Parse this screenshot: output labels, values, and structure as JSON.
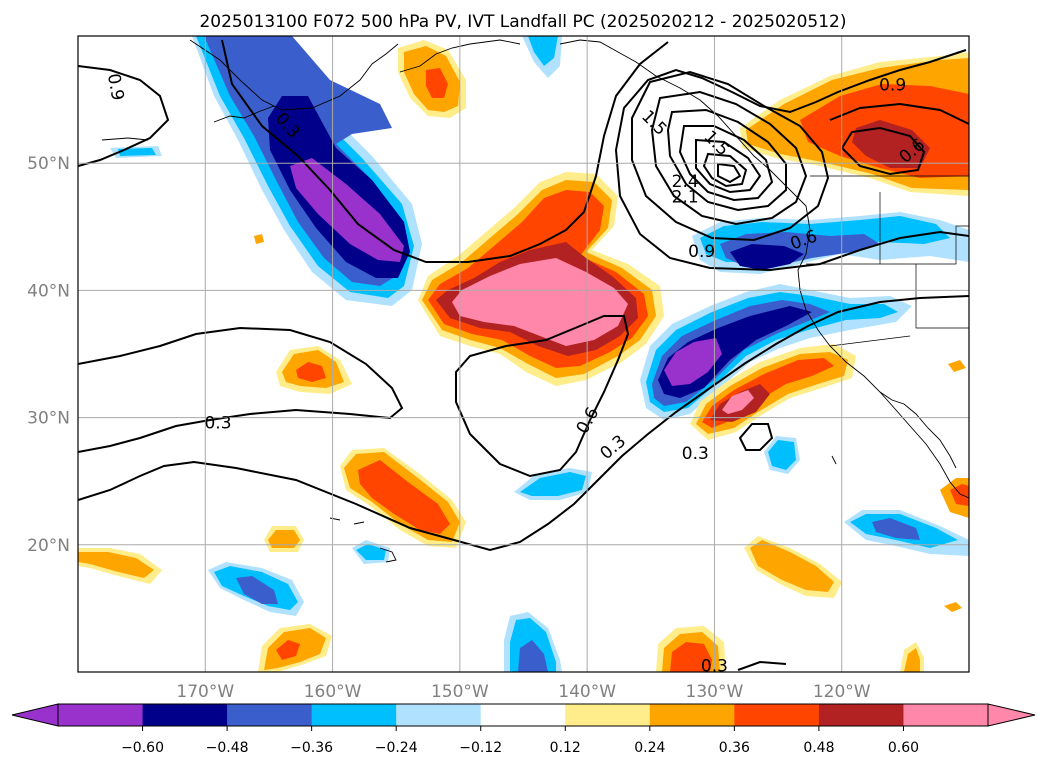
{
  "title": "2025013100 F072 500 hPa PV, IVT Landfall PC (2025020212 - 2025020512)",
  "map": {
    "lon_range": [
      -180,
      -110
    ],
    "lat_range": [
      10,
      60
    ],
    "lon_ticks": [
      {
        "lon": -170,
        "label": "170°W"
      },
      {
        "lon": -160,
        "label": "160°W"
      },
      {
        "lon": -150,
        "label": "150°W"
      },
      {
        "lon": -140,
        "label": "140°W"
      },
      {
        "lon": -130,
        "label": "130°W"
      },
      {
        "lon": -120,
        "label": "120°W"
      }
    ],
    "lat_ticks": [
      {
        "lat": 20,
        "label": "20°N"
      },
      {
        "lat": 30,
        "label": "30°N"
      },
      {
        "lat": 40,
        "label": "40°N"
      },
      {
        "lat": 50,
        "label": "50°N"
      }
    ],
    "grid": true
  },
  "colorbar": {
    "colors": [
      "#9932cc",
      "#00008b",
      "#3a5fcd",
      "#00bfff",
      "#b0e2ff",
      "#ffffff",
      "#ffec8b",
      "#ffa500",
      "#ff4500",
      "#b22222",
      "#ff88aa"
    ],
    "ticks": [
      "−0.60",
      "−0.48",
      "−0.36",
      "−0.24",
      "−0.12",
      "0.12",
      "0.24",
      "0.36",
      "0.48",
      "0.60"
    ],
    "extend": "both"
  },
  "contour_labels": [
    {
      "text": "0.3",
      "lon": -169,
      "lat": 29.6,
      "rot": 0
    },
    {
      "text": "0.9",
      "lon": -177,
      "lat": 56.0,
      "rot": 80
    },
    {
      "text": "0.3",
      "lon": -163.5,
      "lat": 53.0,
      "rot": 50
    },
    {
      "text": "0.6",
      "lon": -140,
      "lat": 29.8,
      "rot": -60
    },
    {
      "text": "0.3",
      "lon": -138,
      "lat": 27.7,
      "rot": -40
    },
    {
      "text": "0.9",
      "lon": -131,
      "lat": 43.1,
      "rot": 0
    },
    {
      "text": "0.6",
      "lon": -123,
      "lat": 44.0,
      "rot": -20
    },
    {
      "text": "2.1",
      "lon": -132.3,
      "lat": 47.4,
      "rot": 0
    },
    {
      "text": "2.4",
      "lon": -132.3,
      "lat": 48.6,
      "rot": 0
    },
    {
      "text": "1.5",
      "lon": -129.8,
      "lat": 51.6,
      "rot": 45
    },
    {
      "text": "1.5",
      "lon": -134.7,
      "lat": 53.2,
      "rot": 45
    },
    {
      "text": "0.9",
      "lon": -116.0,
      "lat": 56.2,
      "rot": 0
    },
    {
      "text": "0.6",
      "lon": -114.5,
      "lat": 51.0,
      "rot": -40
    },
    {
      "text": "0.3",
      "lon": -131.5,
      "lat": 27.2,
      "rot": 0
    },
    {
      "text": "0.3",
      "lon": -130.0,
      "lat": 10.5,
      "rot": 0
    }
  ]
}
